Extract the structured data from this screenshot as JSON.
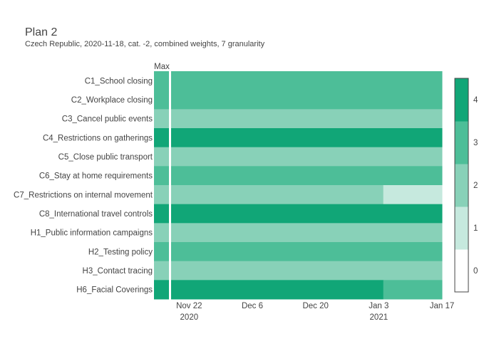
{
  "chart_data": {
    "type": "heatmap",
    "title": "Plan 2",
    "subtitle": "Czech Republic, 2020-11-18, cat. -2, combined weights, 7 granularity",
    "max_column_label": "Max",
    "rows": [
      "C1_School closing",
      "C2_Workplace closing",
      "C3_Cancel public events",
      "C4_Restrictions on gatherings",
      "C5_Close public transport",
      "C6_Stay at home requirements",
      "C7_Restrictions on internal movement",
      "C8_International travel controls",
      "H1_Public information campaigns",
      "H2_Testing policy",
      "H3_Contact tracing",
      "H6_Facial Coverings"
    ],
    "max_values": [
      3,
      3,
      2,
      4,
      2,
      3,
      2,
      4,
      2,
      3,
      2,
      4
    ],
    "x_ticks": [
      {
        "date": "2020-11-22",
        "label": "Nov 22",
        "sublabel": "2020"
      },
      {
        "date": "2020-12-06",
        "label": "Dec 6",
        "sublabel": ""
      },
      {
        "date": "2020-12-20",
        "label": "Dec 20",
        "sublabel": ""
      },
      {
        "date": "2021-01-03",
        "label": "Jan 3",
        "sublabel": "2021"
      },
      {
        "date": "2021-01-17",
        "label": "Jan 17",
        "sublabel": ""
      }
    ],
    "x_range": [
      "2020-11-18",
      "2021-01-17"
    ],
    "segments": [
      [
        {
          "start": "2020-11-18",
          "end": "2021-01-17",
          "value": 3
        }
      ],
      [
        {
          "start": "2020-11-18",
          "end": "2021-01-17",
          "value": 3
        }
      ],
      [
        {
          "start": "2020-11-18",
          "end": "2021-01-17",
          "value": 2
        }
      ],
      [
        {
          "start": "2020-11-18",
          "end": "2021-01-17",
          "value": 4
        }
      ],
      [
        {
          "start": "2020-11-18",
          "end": "2021-01-17",
          "value": 2
        }
      ],
      [
        {
          "start": "2020-11-18",
          "end": "2021-01-17",
          "value": 3
        }
      ],
      [
        {
          "start": "2020-11-18",
          "end": "2021-01-04",
          "value": 2
        },
        {
          "start": "2021-01-04",
          "end": "2021-01-17",
          "value": 1
        }
      ],
      [
        {
          "start": "2020-11-18",
          "end": "2021-01-17",
          "value": 4
        }
      ],
      [
        {
          "start": "2020-11-18",
          "end": "2021-01-17",
          "value": 2
        }
      ],
      [
        {
          "start": "2020-11-18",
          "end": "2021-01-17",
          "value": 3
        }
      ],
      [
        {
          "start": "2020-11-18",
          "end": "2021-01-17",
          "value": 2
        }
      ],
      [
        {
          "start": "2020-11-18",
          "end": "2021-01-04",
          "value": 4
        },
        {
          "start": "2021-01-04",
          "end": "2021-01-17",
          "value": 3
        }
      ]
    ],
    "colorscale": {
      "0": "#ffffff",
      "1": "#c6e9de",
      "2": "#88d1b8",
      "3": "#4dbe98",
      "4": "#11a677"
    },
    "colorbar_ticks": [
      "0",
      "1",
      "2",
      "3",
      "4"
    ]
  }
}
